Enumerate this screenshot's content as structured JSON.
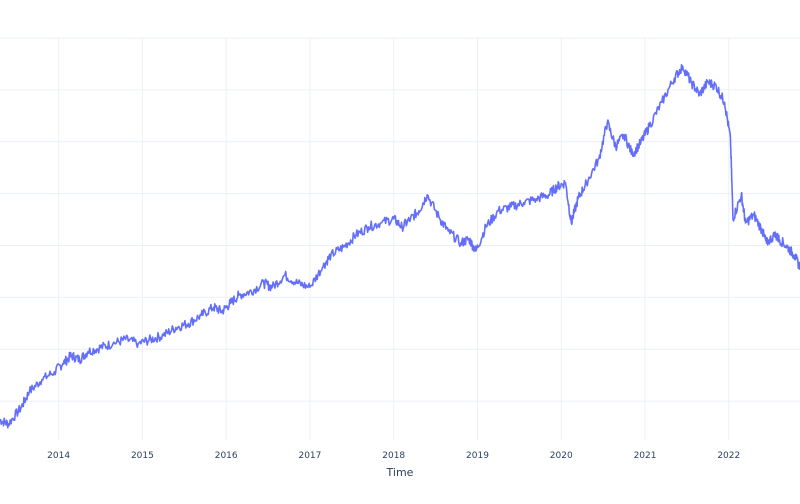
{
  "chart_data": {
    "type": "line",
    "title": "",
    "xlabel": "Time",
    "ylabel": "",
    "x_ticks": [
      "2014",
      "2015",
      "2016",
      "2017",
      "2018",
      "2019",
      "2020",
      "2021",
      "2022"
    ],
    "y_gridlines": true,
    "x_gridlines": true,
    "legend": "none",
    "line_color": "#636efa",
    "x_range": [
      2013.3,
      2022.85
    ],
    "y_range": [
      0,
      100
    ],
    "series": [
      {
        "x": [
          2013.3,
          2013.4,
          2013.55,
          2013.65,
          2013.8,
          2013.95,
          2014.05,
          2014.15,
          2014.25,
          2014.35,
          2014.5,
          2014.65,
          2014.8,
          2014.95,
          2015.1,
          2015.25,
          2015.4,
          2015.55,
          2015.7,
          2015.85,
          2015.95,
          2016.05,
          2016.15,
          2016.3,
          2016.45,
          2016.55,
          2016.7,
          2016.85,
          2017.0,
          2017.15,
          2017.25,
          2017.4,
          2017.55,
          2017.7,
          2017.85,
          2018.0,
          2018.1,
          2018.2,
          2018.3,
          2018.4,
          2018.55,
          2018.65,
          2018.8,
          2018.9,
          2018.98,
          2019.1,
          2019.25,
          2019.4,
          2019.55,
          2019.7,
          2019.85,
          2019.95,
          2020.05,
          2020.12,
          2020.2,
          2020.3,
          2020.45,
          2020.55,
          2020.65,
          2020.75,
          2020.85,
          2020.95,
          2021.05,
          2021.2,
          2021.35,
          2021.45,
          2021.55,
          2021.65,
          2021.75,
          2021.85,
          2021.95,
          2022.02,
          2022.05,
          2022.15,
          2022.2,
          2022.3,
          2022.4,
          2022.45,
          2022.55,
          2022.6,
          2022.7,
          2022.78,
          2022.85
        ],
        "y": [
          5,
          4,
          8,
          12,
          15,
          17,
          19,
          21,
          20,
          22,
          23,
          24,
          25,
          24,
          25,
          26,
          28,
          29,
          31,
          33,
          32,
          34,
          36,
          37,
          39,
          38,
          41,
          39,
          38,
          43,
          46,
          48,
          51,
          53,
          54,
          55,
          53,
          55,
          57,
          61,
          55,
          52,
          49,
          50,
          47,
          53,
          57,
          58,
          59,
          60,
          61,
          63,
          64,
          54,
          60,
          64,
          70,
          79,
          73,
          76,
          71,
          74,
          78,
          84,
          90,
          93,
          89,
          86,
          89,
          88,
          84,
          75,
          55,
          61,
          54,
          56,
          52,
          49,
          51,
          50,
          48,
          46,
          43
        ]
      }
    ]
  }
}
